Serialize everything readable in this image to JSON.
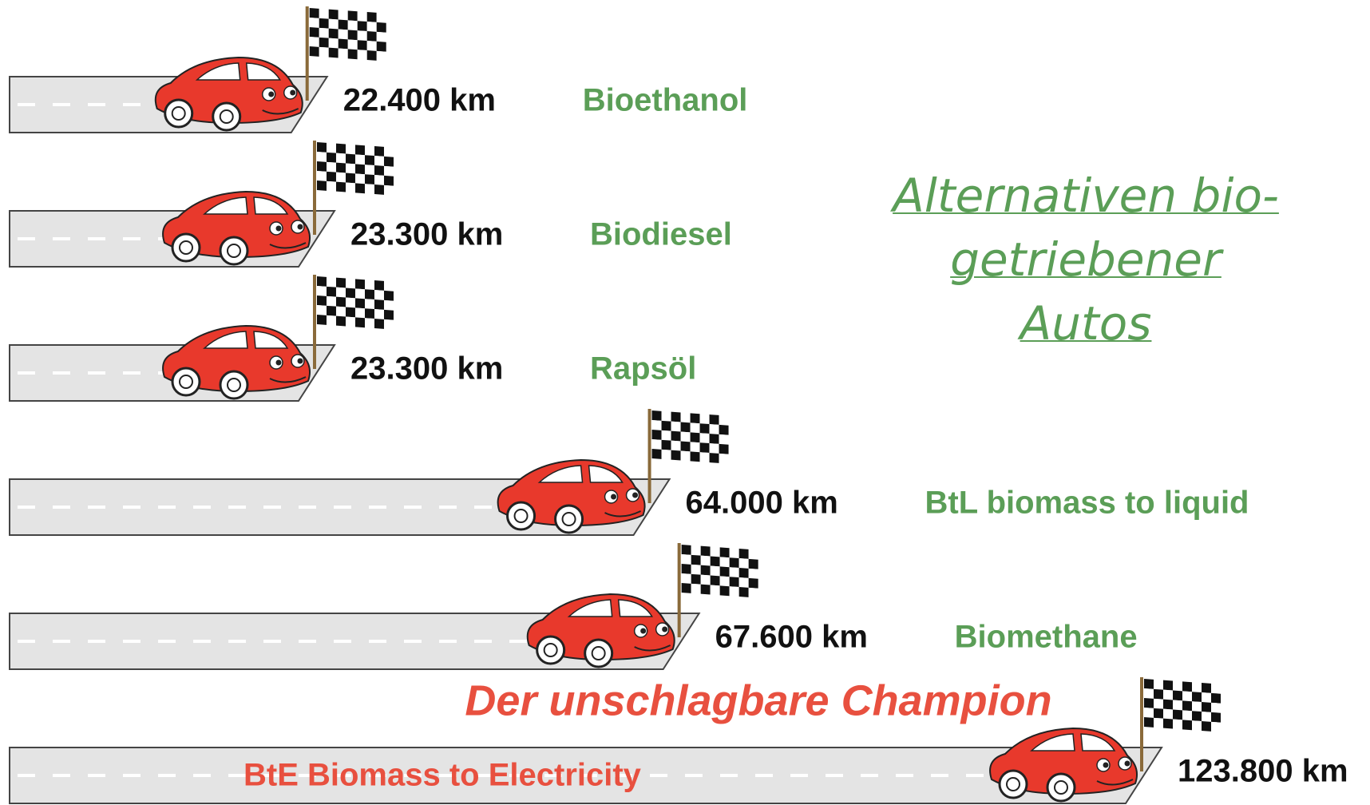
{
  "chart_data": {
    "type": "bar",
    "title": "Alternativen bio-getriebener Autos",
    "annotation": "Der unschlagbare Champion",
    "categories": [
      "Bioethanol",
      "Biodiesel",
      "Rapsöl",
      "BtL biomass to liquid",
      "Biomethane",
      "BtE  Biomass to Electricity"
    ],
    "values": [
      22400,
      23300,
      23300,
      64000,
      67600,
      123800
    ],
    "value_labels": [
      "22.400 km",
      "23.300 km",
      "23.300 km",
      "64.000 km",
      "67.600 km",
      "123.800 km"
    ],
    "color": "#e4e4e4",
    "label_color": "#5b9e57",
    "highlight_color": "#e8503f",
    "car_color": "#e8392c"
  }
}
